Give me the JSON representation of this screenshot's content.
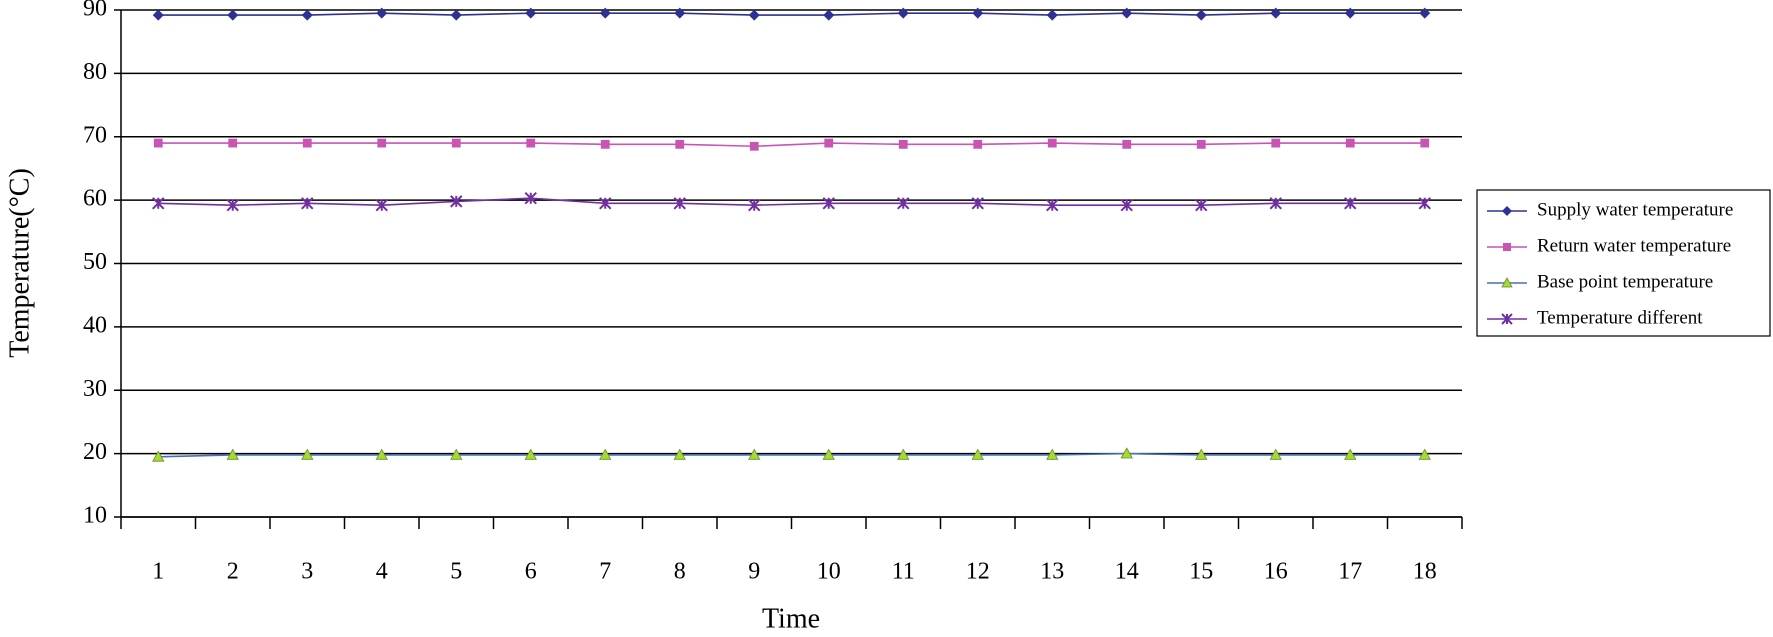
{
  "chart_data": {
    "type": "line",
    "y_label": "Temperature(°C)",
    "x_label": "Time",
    "categories": [
      1,
      2,
      3,
      4,
      5,
      6,
      7,
      8,
      9,
      10,
      11,
      12,
      13,
      14,
      15,
      16,
      17,
      18
    ],
    "series": [
      {
        "name": "Supply water temperature",
        "color": "#2e3192",
        "marker_color": "#2e3192",
        "marker": "diamond",
        "values": [
          89.2,
          89.2,
          89.2,
          89.5,
          89.2,
          89.5,
          89.5,
          89.5,
          89.2,
          89.2,
          89.5,
          89.5,
          89.2,
          89.5,
          89.2,
          89.5,
          89.5,
          89.5
        ]
      },
      {
        "name": "Return water temperature",
        "color": "#c855b4",
        "marker_color": "#c855b4",
        "marker": "square",
        "values": [
          69,
          69,
          69,
          69,
          69,
          69,
          68.8,
          68.8,
          68.5,
          69,
          68.8,
          68.8,
          69,
          68.8,
          68.8,
          69,
          69,
          69
        ]
      },
      {
        "name": "Base point temperature",
        "color": "#4a6fb5",
        "marker_color": "#a6d936",
        "marker": "triangle",
        "values": [
          19.5,
          19.8,
          19.8,
          19.8,
          19.8,
          19.8,
          19.8,
          19.8,
          19.8,
          19.8,
          19.8,
          19.8,
          19.8,
          20,
          19.8,
          19.8,
          19.8,
          19.8
        ]
      },
      {
        "name": "Temperature different",
        "color": "#7030a0",
        "marker_color": "#7030a0",
        "marker": "star",
        "values": [
          59.5,
          59.2,
          59.5,
          59.2,
          59.8,
          60.3,
          59.5,
          59.5,
          59.2,
          59.5,
          59.5,
          59.5,
          59.2,
          59.2,
          59.2,
          59.5,
          59.5,
          59.5
        ]
      }
    ],
    "ylim": [
      10,
      90
    ],
    "yticks": [
      10,
      20,
      30,
      40,
      50,
      60,
      70,
      80,
      90
    ],
    "grid": true,
    "legend": "right"
  }
}
